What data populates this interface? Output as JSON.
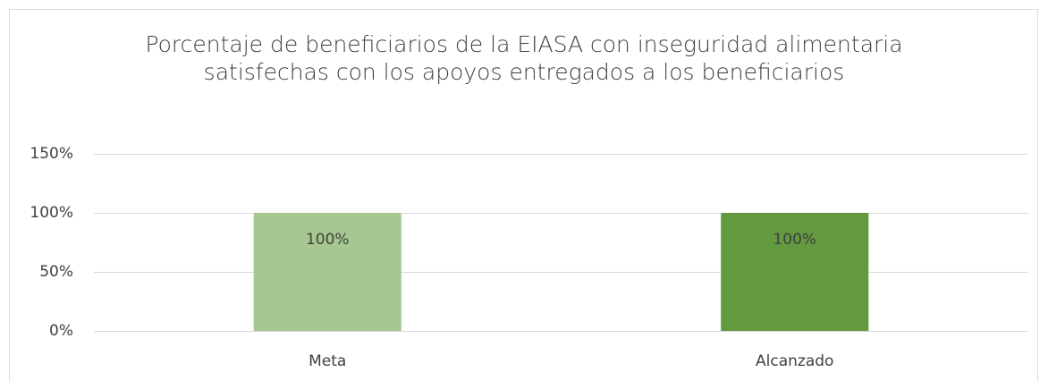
{
  "chart_data": {
    "type": "bar",
    "title": "Porcentaje de beneficiarios de la EIASA con inseguridad alimentaria satisfechas con los apoyos entregados a los beneficiarios",
    "categories": [
      "Meta",
      "Alcanzado"
    ],
    "values": [
      100,
      100
    ],
    "value_labels": [
      "100%",
      "100%"
    ],
    "colors": [
      "#a6c78f",
      "#639a3f"
    ],
    "ylim": [
      0,
      150
    ],
    "yticks": [
      {
        "value": 0,
        "label": "0%"
      },
      {
        "value": 50,
        "label": "50%"
      },
      {
        "value": 100,
        "label": "100%"
      },
      {
        "value": 150,
        "label": "150%"
      }
    ],
    "grid": true
  }
}
